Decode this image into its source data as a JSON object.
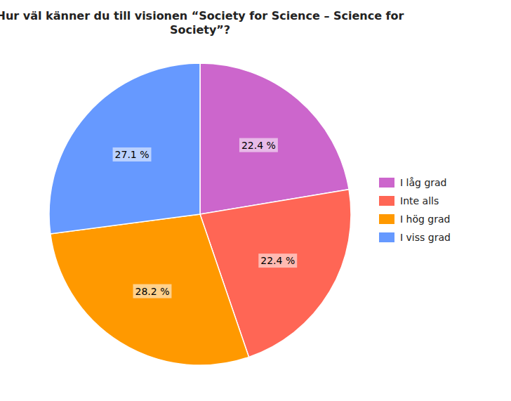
{
  "chart_data": {
    "type": "pie",
    "title": "Hur väl känner du till visionen “Society for Science – Science for\nSociety”?",
    "categories": [
      "I låg grad",
      "Inte alls",
      "I hög grad",
      "I viss grad"
    ],
    "values": [
      22.4,
      22.4,
      28.2,
      27.1
    ],
    "value_labels": [
      "22.4 %",
      "22.4 %",
      "28.2 %",
      "27.1 %"
    ],
    "colors": [
      "#CC66CC",
      "#FF6655",
      "#FF9900",
      "#6699FF"
    ],
    "data_labels": true,
    "legend": "right"
  }
}
